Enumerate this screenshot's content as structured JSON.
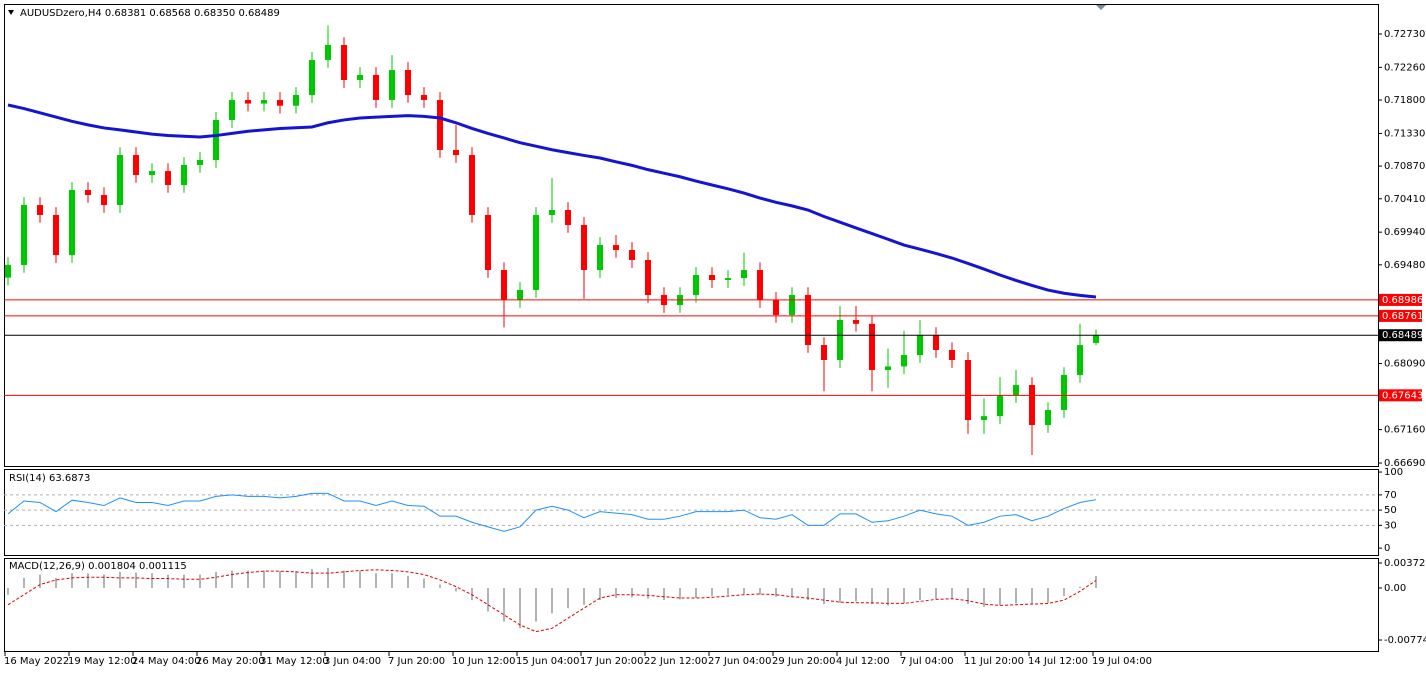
{
  "chart_data": [
    {
      "type": "candlestick",
      "title": "AUDUSDzero,H4  0.68381 0.68568 0.68350 0.68489",
      "categories": [
        "16 May 2022",
        null,
        null,
        null,
        "19 May 12:00",
        null,
        null,
        null,
        "24 May 04:00",
        null,
        null,
        null,
        "26 May 20:00",
        null,
        null,
        null,
        "31 May 12:00",
        null,
        null,
        null,
        "3 Jun 04:00",
        null,
        null,
        null,
        "7 Jun 20:00",
        null,
        null,
        null,
        "10 Jun 12:00",
        null,
        null,
        null,
        "15 Jun 04:00",
        null,
        null,
        null,
        "17 Jun 20:00",
        null,
        null,
        null,
        "22 Jun 12:00",
        null,
        null,
        null,
        "27 Jun 04:00",
        null,
        null,
        null,
        "29 Jun 20:00",
        null,
        null,
        null,
        "4 Jul 12:00",
        null,
        null,
        null,
        "7 Jul 04:00",
        null,
        null,
        null,
        "11 Jul 20:00",
        null,
        null,
        null,
        "14 Jul 12:00",
        null,
        null,
        null,
        "19 Jul 04:00"
      ],
      "open": [
        0.693,
        0.69478,
        0.70322,
        0.70182,
        0.69618,
        0.70534,
        0.70463,
        0.70322,
        0.71026,
        0.70745,
        0.708,
        0.70604,
        0.70886,
        0.70956,
        0.71519,
        0.71801,
        0.7175,
        0.71801,
        0.7172,
        0.71871,
        0.72364,
        0.72575,
        0.72082,
        0.72153,
        0.71801,
        0.72223,
        0.71871,
        0.71801,
        0.71097,
        0.71026,
        0.70182,
        0.69407,
        0.68985,
        0.69126,
        0.70182,
        0.70252,
        0.70041,
        0.69407,
        0.69759,
        0.69689,
        0.69548,
        0.69055,
        0.68914,
        0.69055,
        0.69337,
        0.69266,
        0.69294,
        0.69407,
        0.68985,
        0.68774,
        0.69055,
        0.68351,
        0.6814,
        0.68703,
        0.6865,
        0.67999,
        0.6805,
        0.6821,
        0.68492,
        0.68281,
        0.6814,
        0.67295,
        0.6735,
        0.67647,
        0.67788,
        0.67225,
        0.67436,
        0.67929,
        0.68381
      ],
      "high": [
        0.69588,
        0.70432,
        0.70432,
        0.70292,
        0.70644,
        0.70644,
        0.70573,
        0.71136,
        0.71136,
        0.7091,
        0.7091,
        0.70996,
        0.71066,
        0.71629,
        0.71911,
        0.71911,
        0.71911,
        0.71911,
        0.71981,
        0.72474,
        0.7285,
        0.72685,
        0.72263,
        0.72263,
        0.72433,
        0.72333,
        0.71981,
        0.71911,
        0.7145,
        0.71136,
        0.70292,
        0.69517,
        0.69236,
        0.70292,
        0.707,
        0.70362,
        0.70151,
        0.69869,
        0.699,
        0.69799,
        0.69658,
        0.69165,
        0.69165,
        0.69447,
        0.69447,
        0.69404,
        0.6965,
        0.69517,
        0.69095,
        0.69165,
        0.69165,
        0.68461,
        0.689,
        0.689,
        0.6876,
        0.683,
        0.6855,
        0.687,
        0.68602,
        0.68391,
        0.6825,
        0.676,
        0.679,
        0.68,
        0.67898,
        0.67546,
        0.68039,
        0.6865,
        0.68568
      ],
      "low": [
        0.6919,
        0.69368,
        0.70072,
        0.69508,
        0.69508,
        0.70353,
        0.70212,
        0.70212,
        0.70635,
        0.70635,
        0.70494,
        0.70494,
        0.70776,
        0.70846,
        0.71409,
        0.7164,
        0.7164,
        0.7161,
        0.7161,
        0.71761,
        0.72254,
        0.71972,
        0.71972,
        0.71691,
        0.71691,
        0.71761,
        0.71691,
        0.70987,
        0.70916,
        0.70072,
        0.69297,
        0.686,
        0.68875,
        0.69016,
        0.70072,
        0.69931,
        0.69,
        0.69297,
        0.69579,
        0.69438,
        0.68945,
        0.68804,
        0.68804,
        0.68945,
        0.69156,
        0.69156,
        0.69184,
        0.68875,
        0.68664,
        0.68664,
        0.68241,
        0.677,
        0.6803,
        0.6854,
        0.677,
        0.6775,
        0.6794,
        0.681,
        0.68171,
        0.6803,
        0.671,
        0.671,
        0.6724,
        0.67537,
        0.66802,
        0.67115,
        0.67326,
        0.67819,
        0.6835
      ],
      "close": [
        0.69478,
        0.70322,
        0.70182,
        0.69618,
        0.70534,
        0.70463,
        0.70322,
        0.71026,
        0.70745,
        0.708,
        0.70604,
        0.70886,
        0.70956,
        0.71519,
        0.71801,
        0.7175,
        0.71801,
        0.7172,
        0.71871,
        0.72364,
        0.72575,
        0.72082,
        0.72153,
        0.71801,
        0.72223,
        0.71871,
        0.71801,
        0.71097,
        0.71026,
        0.70182,
        0.69407,
        0.68985,
        0.69126,
        0.70182,
        0.70252,
        0.70041,
        0.69407,
        0.69759,
        0.69689,
        0.69548,
        0.69055,
        0.68914,
        0.69055,
        0.69337,
        0.69266,
        0.69294,
        0.69407,
        0.68985,
        0.68774,
        0.69055,
        0.68351,
        0.6814,
        0.68703,
        0.6865,
        0.67999,
        0.6805,
        0.6821,
        0.68492,
        0.68281,
        0.6814,
        0.67295,
        0.6735,
        0.67647,
        0.67788,
        0.67225,
        0.67436,
        0.67929,
        0.68351,
        0.68489
      ],
      "up_color": "#00c800",
      "down_color": "#ff0000",
      "ma": {
        "color": "#1414d2",
        "values": [
          0.7173,
          0.7168,
          0.7162,
          0.7156,
          0.715,
          0.7145,
          0.71407,
          0.7138,
          0.7135,
          0.7132,
          0.713,
          0.7129,
          0.7128,
          0.713,
          0.7133,
          0.7136,
          0.7138,
          0.714,
          0.7141,
          0.71421,
          0.7148,
          0.7152,
          0.71547,
          0.7156,
          0.7157,
          0.7158,
          0.7157,
          0.71547,
          0.7148,
          0.714,
          0.7133,
          0.71266,
          0.712,
          0.7115,
          0.711,
          0.7106,
          0.7102,
          0.70984,
          0.7093,
          0.7088,
          0.7082,
          0.7077,
          0.7072,
          0.7066,
          0.70604,
          0.7055,
          0.7049,
          0.7042,
          0.7036,
          0.7031,
          0.70252,
          0.7016,
          0.7008,
          0.69999,
          0.6992,
          0.6984,
          0.69759,
          0.697,
          0.6964,
          0.69576,
          0.695,
          0.6942,
          0.69337,
          0.6926,
          0.6919,
          0.69125,
          0.6908,
          0.6905,
          0.69027
        ]
      },
      "levels": [
        {
          "value": 0.68986,
          "color": "#ff0000"
        },
        {
          "value": 0.68761,
          "color": "#ff0000"
        },
        {
          "value": 0.67643,
          "color": "#ff0000"
        },
        {
          "value": 0.68489,
          "color": "#000000"
        }
      ],
      "ylim": [
        0.66648,
        0.73152
      ],
      "yticks": [
        {
          "value": 0.7273,
          "label": "0.72730"
        },
        {
          "value": 0.7226,
          "label": "0.72260"
        },
        {
          "value": 0.718,
          "label": "0.71800"
        },
        {
          "value": 0.7133,
          "label": "0.71330"
        },
        {
          "value": 0.7087,
          "label": "0.70870"
        },
        {
          "value": 0.7041,
          "label": "0.70410"
        },
        {
          "value": 0.6994,
          "label": "0.69940"
        },
        {
          "value": 0.6948,
          "label": "0.69480"
        },
        {
          "value": 0.6809,
          "label": "0.68090"
        },
        {
          "value": 0.6716,
          "label": "0.67160"
        },
        {
          "value": 0.6669,
          "label": "0.66690"
        }
      ]
    },
    {
      "type": "line",
      "title": "RSI(14) 63.6873",
      "color": "#1e90ff",
      "values": [
        45,
        62,
        60,
        48,
        63,
        60,
        56,
        66,
        60,
        60,
        56,
        62,
        62,
        68,
        70,
        68,
        68,
        66,
        68,
        72,
        72,
        62,
        62,
        56,
        62,
        56,
        55,
        42,
        42,
        34,
        28,
        22,
        28,
        50,
        55,
        50,
        40,
        48,
        46,
        44,
        38,
        38,
        42,
        48,
        48,
        48,
        50,
        40,
        38,
        44,
        30,
        30,
        45,
        45,
        34,
        36,
        42,
        50,
        45,
        42,
        30,
        34,
        42,
        44,
        36,
        42,
        52,
        60,
        63.6873
      ],
      "levels": [
        70,
        50,
        30
      ],
      "ylim": [
        -9,
        104
      ],
      "yticks": [
        100,
        70,
        50,
        30,
        0
      ]
    },
    {
      "type": "macd",
      "title": "MACD(12,26,9) 0.001804 0.001115",
      "hist_color": "#b4b4b4",
      "signal_color": "#e00000",
      "values": [
        -0.001,
        0.0015,
        0.002,
        0.0015,
        0.0022,
        0.0022,
        0.002,
        0.0024,
        0.0023,
        0.0022,
        0.002,
        0.002,
        0.002,
        0.0024,
        0.0026,
        0.0026,
        0.0026,
        0.0025,
        0.0025,
        0.0028,
        0.003,
        0.0026,
        0.0025,
        0.0022,
        0.0022,
        0.0018,
        0.0014,
        0.0005,
        -0.0005,
        -0.0018,
        -0.0035,
        -0.005,
        -0.006,
        -0.005,
        -0.0038,
        -0.003,
        -0.0025,
        -0.0018,
        -0.0015,
        -0.0014,
        -0.0016,
        -0.0018,
        -0.0017,
        -0.0015,
        -0.0012,
        -0.001,
        -0.0009,
        -0.001,
        -0.0013,
        -0.0014,
        -0.0018,
        -0.0024,
        -0.0022,
        -0.002,
        -0.0024,
        -0.0026,
        -0.0023,
        -0.0018,
        -0.0016,
        -0.0016,
        -0.0024,
        -0.0028,
        -0.0026,
        -0.0023,
        -0.0024,
        -0.0022,
        -0.0012,
        0.0002,
        0.001804
      ],
      "signal": [
        -0.0025,
        -0.001,
        0.0005,
        0.0012,
        0.0015,
        0.0016,
        0.0016,
        0.0015,
        0.0015,
        0.0014,
        0.0014,
        0.0013,
        0.0013,
        0.0016,
        0.002,
        0.0023,
        0.0025,
        0.0025,
        0.0024,
        0.0022,
        0.0022,
        0.0024,
        0.0026,
        0.0027,
        0.0026,
        0.0024,
        0.002,
        0.0012,
        0.0002,
        -0.001,
        -0.0025,
        -0.004,
        -0.0055,
        -0.0065,
        -0.006,
        -0.0045,
        -0.003,
        -0.0015,
        -0.001,
        -0.001,
        -0.0011,
        -0.0013,
        -0.0015,
        -0.0015,
        -0.0014,
        -0.0012,
        -0.001,
        -0.0009,
        -0.001,
        -0.0013,
        -0.0015,
        -0.0018,
        -0.0021,
        -0.0022,
        -0.0022,
        -0.0023,
        -0.0023,
        -0.002,
        -0.0017,
        -0.0016,
        -0.0019,
        -0.0024,
        -0.0026,
        -0.0025,
        -0.0024,
        -0.0023,
        -0.0018,
        -0.0005,
        0.001115
      ],
      "ylim": [
        -0.00938,
        0.00446
      ],
      "yticks": [
        0.00372,
        {
          "value": 0,
          "label": "0.00"
        },
        -0.007747
      ]
    }
  ]
}
